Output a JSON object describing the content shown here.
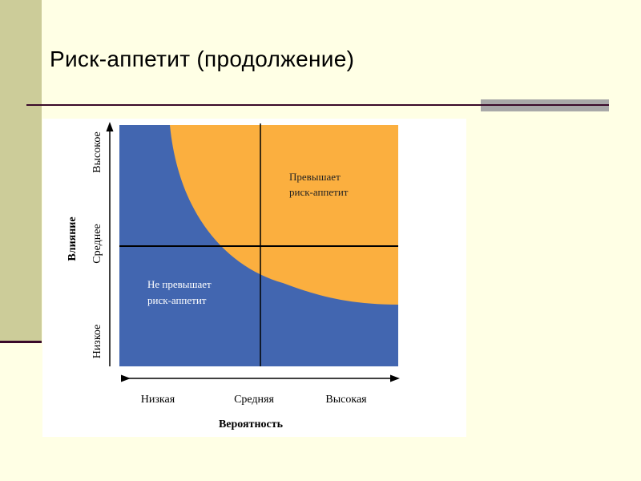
{
  "slide": {
    "title": "Риск-аппетит (продолжение)"
  },
  "diagram": {
    "y_axis_label": "Влияние",
    "y_ticks": [
      "Низкое",
      "Среднее",
      "Высокое"
    ],
    "x_axis_label": "Вероятность",
    "x_ticks": [
      "Низкая",
      "Средняя",
      "Высокая"
    ],
    "region_above": [
      "Превышает",
      "риск-аппетит"
    ],
    "region_below": [
      "Не превышает",
      "риск-аппетит"
    ],
    "colors": {
      "below": "#4266B0",
      "above": "#FBAF3F"
    }
  }
}
